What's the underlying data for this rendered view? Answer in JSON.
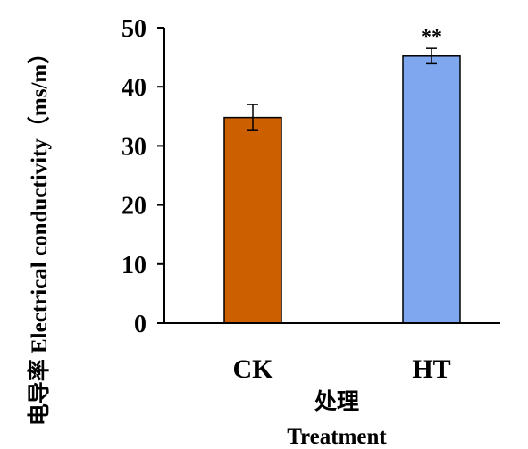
{
  "chart_data": {
    "type": "bar",
    "categories": [
      "CK",
      "HT"
    ],
    "values": [
      34.8,
      45.2
    ],
    "errors": [
      2.2,
      1.3
    ],
    "bar_colors": [
      "#cc6000",
      "#7ea7f0"
    ],
    "significance": [
      "",
      "**"
    ],
    "ylim": [
      0,
      50
    ],
    "yticks": [
      0,
      10,
      20,
      30,
      40,
      50
    ],
    "ylabel": "电导率 Electrical conductivity（ms/m）",
    "xlabel_cn": "处理",
    "xlabel_en": "Treatment",
    "grid": false,
    "legend": "none"
  }
}
